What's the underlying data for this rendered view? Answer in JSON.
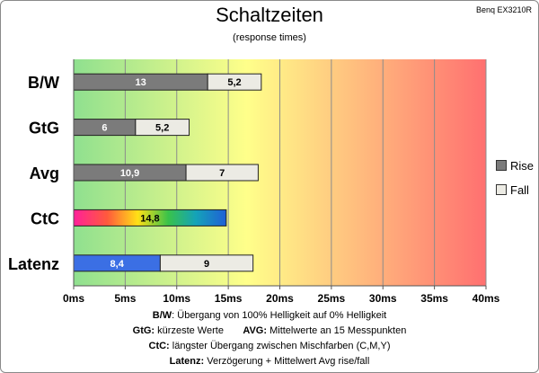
{
  "chart_data": {
    "type": "bar",
    "orientation": "horizontal",
    "stacked": true,
    "title": "Schaltzeiten",
    "subtitle": "(response times)",
    "model_label": "Benq EX3210R",
    "categories": [
      "B/W",
      "GtG",
      "Avg",
      "CtC",
      "Latenz"
    ],
    "series": [
      {
        "name": "Rise",
        "values": [
          13,
          6,
          10.9,
          14.8,
          8.4
        ],
        "labels": [
          "13",
          "6",
          "10,9",
          "14,8",
          "8,4"
        ]
      },
      {
        "name": "Fall",
        "values": [
          5.2,
          5.2,
          7,
          null,
          9
        ],
        "labels": [
          "5,2",
          "5,2",
          "7",
          "",
          "9"
        ]
      }
    ],
    "xlim": [
      0,
      40
    ],
    "x_ticks": [
      "0ms",
      "5ms",
      "10ms",
      "15ms",
      "20ms",
      "25ms",
      "30ms",
      "35ms",
      "40ms"
    ],
    "grid": true,
    "legend_position": "right",
    "colors": {
      "rise": "#7b7b7b",
      "fall": "#ecebe4",
      "latenz_rise": "#3b6fe4",
      "background_gradient": [
        "#8fe08f",
        "#ffff8a",
        "#ff7070"
      ]
    }
  },
  "notes": [
    {
      "key": "B/W",
      "text": ":  Übergang von 100% Helligkeit auf 0% Helligkeit"
    },
    {
      "key": "GtG:",
      "text": " kürzeste  Werte",
      "key2": "AVG:",
      "text2": " Mittelwerte  an 15 Messpunkten"
    },
    {
      "key": "CtC:",
      "text": " längster Übergang  zwischen Mischfarben (C,M,Y)"
    },
    {
      "key": "Latenz:",
      "text": " Verzögerung  + Mittelwert  Avg rise/fall"
    }
  ]
}
